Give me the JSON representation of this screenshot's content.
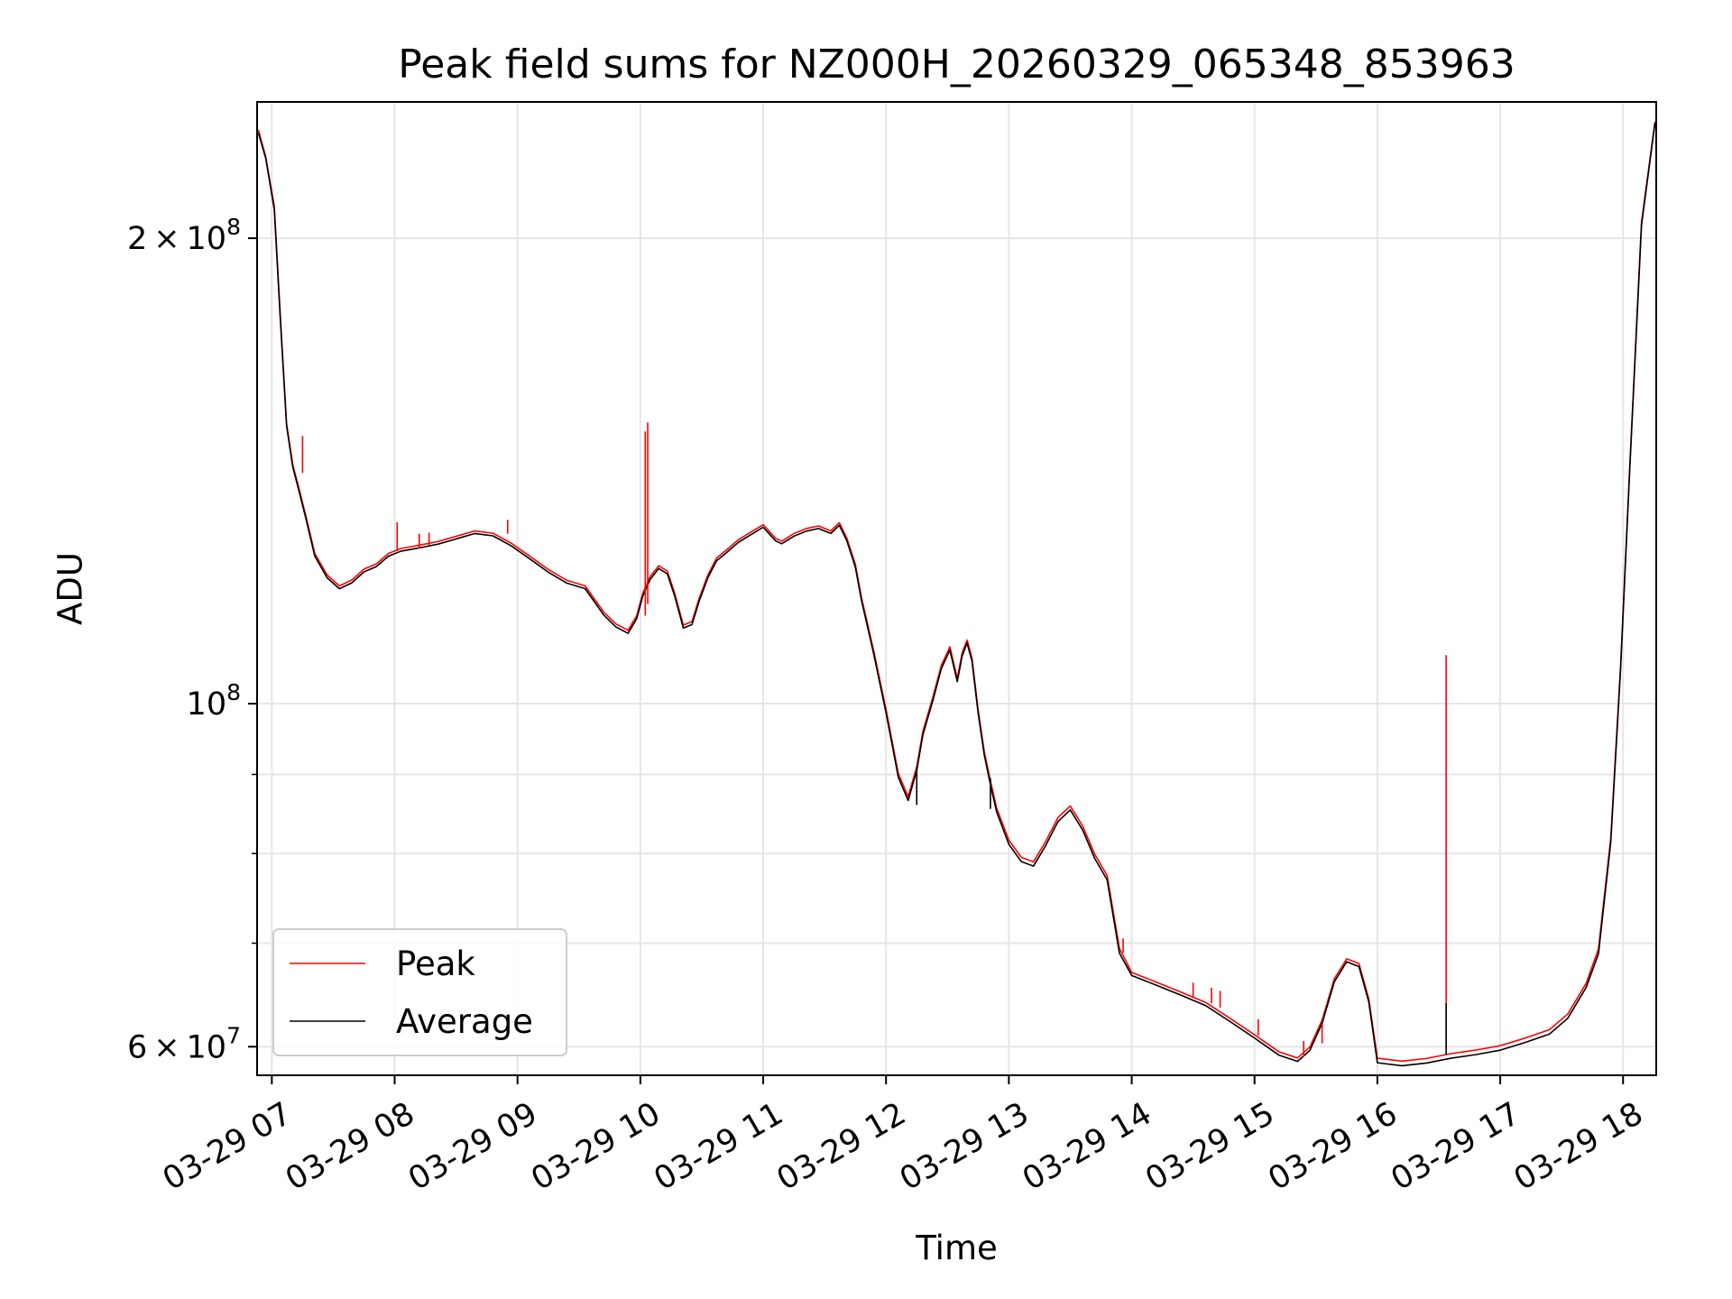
{
  "chart_data": {
    "type": "line",
    "title": "Peak field sums for NZ000H_20260329_065348_853963",
    "xlabel": "Time",
    "ylabel": "ADU",
    "yscale": "log",
    "ylim": [
      57500000,
      245000000
    ],
    "xlim": [
      6.88,
      18.27
    ],
    "grid": true,
    "legend_position": "lower-left",
    "x_ticks": [
      {
        "value": 7,
        "label": "03-29 07"
      },
      {
        "value": 8,
        "label": "03-29 08"
      },
      {
        "value": 9,
        "label": "03-29 09"
      },
      {
        "value": 10,
        "label": "03-29 10"
      },
      {
        "value": 11,
        "label": "03-29 11"
      },
      {
        "value": 12,
        "label": "03-29 12"
      },
      {
        "value": 13,
        "label": "03-29 13"
      },
      {
        "value": 14,
        "label": "03-29 14"
      },
      {
        "value": 15,
        "label": "03-29 15"
      },
      {
        "value": 16,
        "label": "03-29 16"
      },
      {
        "value": 17,
        "label": "03-29 17"
      },
      {
        "value": 18,
        "label": "03-29 18"
      }
    ],
    "y_major_ticks": [
      {
        "value": 60000000,
        "mant": "6",
        "op": "×",
        "base": "10",
        "exp": "7"
      },
      {
        "value": 100000000,
        "mant": "",
        "op": "",
        "base": "10",
        "exp": "8"
      },
      {
        "value": 200000000,
        "mant": "2",
        "op": "×",
        "base": "10",
        "exp": "8"
      }
    ],
    "y_minor_ticks": [
      70000000,
      80000000,
      90000000
    ],
    "x_values": [
      6.89,
      6.95,
      7.02,
      7.07,
      7.12,
      7.17,
      7.22,
      7.28,
      7.35,
      7.45,
      7.55,
      7.65,
      7.75,
      7.85,
      7.95,
      8.05,
      8.15,
      8.25,
      8.35,
      8.5,
      8.65,
      8.8,
      8.95,
      9.1,
      9.25,
      9.4,
      9.55,
      9.7,
      9.8,
      9.9,
      9.97,
      10.02,
      10.08,
      10.15,
      10.22,
      10.28,
      10.35,
      10.42,
      10.48,
      10.55,
      10.62,
      10.7,
      10.8,
      10.9,
      11.0,
      11.1,
      11.15,
      11.25,
      11.35,
      11.45,
      11.55,
      11.62,
      11.68,
      11.75,
      11.8,
      11.9,
      12.0,
      12.1,
      12.18,
      12.25,
      12.3,
      12.38,
      12.45,
      12.52,
      12.58,
      12.62,
      12.66,
      12.7,
      12.75,
      12.8,
      12.85,
      12.9,
      13.0,
      13.1,
      13.2,
      13.3,
      13.4,
      13.5,
      13.6,
      13.7,
      13.8,
      13.9,
      14.0,
      14.2,
      14.4,
      14.6,
      14.8,
      15.0,
      15.2,
      15.35,
      15.45,
      15.55,
      15.65,
      15.75,
      15.85,
      15.93,
      16.0,
      16.2,
      16.4,
      16.6,
      16.8,
      17.0,
      17.2,
      17.4,
      17.55,
      17.7,
      17.8,
      17.9,
      17.98,
      18.05,
      18.15,
      18.26
    ],
    "series": [
      {
        "name": "Peak",
        "color": "#ff0000",
        "values": [
          235000000,
          226000000,
          210000000,
          178000000,
          152000000,
          143000000,
          138000000,
          132000000,
          125000000,
          121000000,
          119000000,
          120000000,
          122000000,
          123000000,
          125000000,
          126000000,
          126500000,
          127000000,
          127500000,
          128500000,
          129500000,
          129000000,
          127000000,
          124500000,
          122000000,
          120000000,
          119000000,
          114500000,
          112500000,
          111500000,
          114000000,
          118000000,
          121000000,
          123000000,
          122000000,
          118000000,
          112500000,
          113000000,
          117000000,
          121000000,
          124000000,
          125500000,
          127500000,
          129000000,
          130500000,
          128000000,
          127500000,
          129000000,
          130000000,
          130500000,
          129500000,
          131000000,
          128000000,
          123000000,
          117000000,
          108000000,
          99000000,
          90000000,
          87000000,
          91000000,
          96000000,
          101000000,
          106000000,
          109000000,
          104000000,
          108000000,
          110000000,
          107000000,
          99000000,
          93000000,
          89000000,
          85500000,
          81500000,
          79500000,
          79000000,
          81500000,
          84500000,
          86000000,
          83500000,
          80000000,
          77500000,
          69500000,
          67000000,
          66000000,
          65000000,
          64000000,
          62500000,
          61000000,
          59500000,
          59000000,
          60000000,
          62500000,
          66500000,
          68500000,
          68000000,
          64500000,
          59000000,
          58700000,
          58900000,
          59300000,
          59600000,
          60000000,
          60700000,
          61500000,
          63000000,
          66000000,
          69500000,
          82000000,
          106000000,
          140000000,
          205000000,
          238000000
        ]
      },
      {
        "name": "Average",
        "color": "#000000",
        "values": [
          234000000,
          225500000,
          209000000,
          177000000,
          151500000,
          142500000,
          137500000,
          131500000,
          124500000,
          120500000,
          118500000,
          119500000,
          121500000,
          122500000,
          124500000,
          125500000,
          126000000,
          126500000,
          127000000,
          128000000,
          129000000,
          128500000,
          126500000,
          124000000,
          121500000,
          119500000,
          118500000,
          114000000,
          112000000,
          111000000,
          113500000,
          117500000,
          120500000,
          122500000,
          121500000,
          117500000,
          112000000,
          112500000,
          116500000,
          120500000,
          123500000,
          125000000,
          127000000,
          128500000,
          130000000,
          127500000,
          127000000,
          128500000,
          129500000,
          130000000,
          129000000,
          130500000,
          127500000,
          122500000,
          116500000,
          107500000,
          98500000,
          89500000,
          86500000,
          90500000,
          95500000,
          100500000,
          105500000,
          108500000,
          103500000,
          107500000,
          109500000,
          106500000,
          98500000,
          92500000,
          88500000,
          85000000,
          81000000,
          79000000,
          78500000,
          81000000,
          84000000,
          85500000,
          83000000,
          79500000,
          77000000,
          69000000,
          66700000,
          65700000,
          64700000,
          63700000,
          62200000,
          60700000,
          59200000,
          58700000,
          59700000,
          62200000,
          66200000,
          68200000,
          67700000,
          64200000,
          58600000,
          58300000,
          58500000,
          58900000,
          59200000,
          59600000,
          60300000,
          61100000,
          62600000,
          65600000,
          69000000,
          81500000,
          105500000,
          139500000,
          204000000,
          237500000
        ]
      }
    ],
    "spikes": [
      {
        "series": "Peak",
        "x": 7.25,
        "from": 141000000,
        "to": 149000000
      },
      {
        "series": "Peak",
        "x": 8.02,
        "from": 125500000,
        "to": 131000000
      },
      {
        "series": "Peak",
        "x": 8.2,
        "from": 126000000,
        "to": 128800000
      },
      {
        "series": "Peak",
        "x": 8.28,
        "from": 126600000,
        "to": 129000000
      },
      {
        "series": "Peak",
        "x": 8.92,
        "from": 128800000,
        "to": 131500000
      },
      {
        "series": "Peak",
        "x": 10.04,
        "from": 114000000,
        "to": 150000000
      },
      {
        "series": "Peak",
        "x": 10.06,
        "from": 116000000,
        "to": 152000000
      },
      {
        "series": "Peak",
        "x": 13.93,
        "from": 69000000,
        "to": 70500000
      },
      {
        "series": "Peak",
        "x": 14.5,
        "from": 64500000,
        "to": 66000000
      },
      {
        "series": "Peak",
        "x": 14.65,
        "from": 64000000,
        "to": 65500000
      },
      {
        "series": "Peak",
        "x": 14.72,
        "from": 63600000,
        "to": 65200000
      },
      {
        "series": "Peak",
        "x": 15.03,
        "from": 61000000,
        "to": 62500000
      },
      {
        "series": "Peak",
        "x": 15.4,
        "from": 59100000,
        "to": 60500000
      },
      {
        "series": "Peak",
        "x": 15.55,
        "from": 60300000,
        "to": 62000000
      },
      {
        "series": "Peak",
        "x": 16.56,
        "from": 59800000,
        "to": 107500000
      },
      {
        "series": "Average",
        "x": 16.56,
        "from": 59300000,
        "to": 64000000
      },
      {
        "series": "Average",
        "x": 12.25,
        "from": 86000000,
        "to": 91000000
      },
      {
        "series": "Average",
        "x": 12.85,
        "from": 85500000,
        "to": 89500000
      }
    ]
  }
}
